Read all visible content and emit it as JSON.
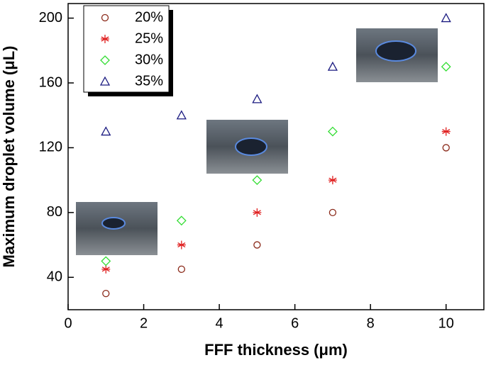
{
  "chart_data": {
    "type": "scatter",
    "xlabel": "FFF thickness (μm)",
    "ylabel": "Maximum droplet volume (μL)",
    "x": [
      1,
      3,
      5,
      7,
      10
    ],
    "series": [
      {
        "name": "20%",
        "color": "#8b2a1a",
        "marker": "circle",
        "values": [
          30,
          45,
          60,
          80,
          120
        ]
      },
      {
        "name": "25%",
        "color": "#e02020",
        "marker": "asterisk",
        "values": [
          45,
          60,
          80,
          100,
          130
        ]
      },
      {
        "name": "30%",
        "color": "#33dd33",
        "marker": "diamond",
        "values": [
          50,
          75,
          100,
          130,
          170
        ]
      },
      {
        "name": "35%",
        "color": "#1a1a80",
        "marker": "triangle",
        "values": [
          130,
          140,
          150,
          170,
          200
        ]
      }
    ],
    "xlim": [
      0,
      11
    ],
    "xticks": [
      0,
      2,
      4,
      6,
      8,
      10
    ],
    "ylim": [
      20,
      209
    ],
    "yticks": [
      40,
      80,
      120,
      160,
      200
    ],
    "legend": "top-left"
  }
}
